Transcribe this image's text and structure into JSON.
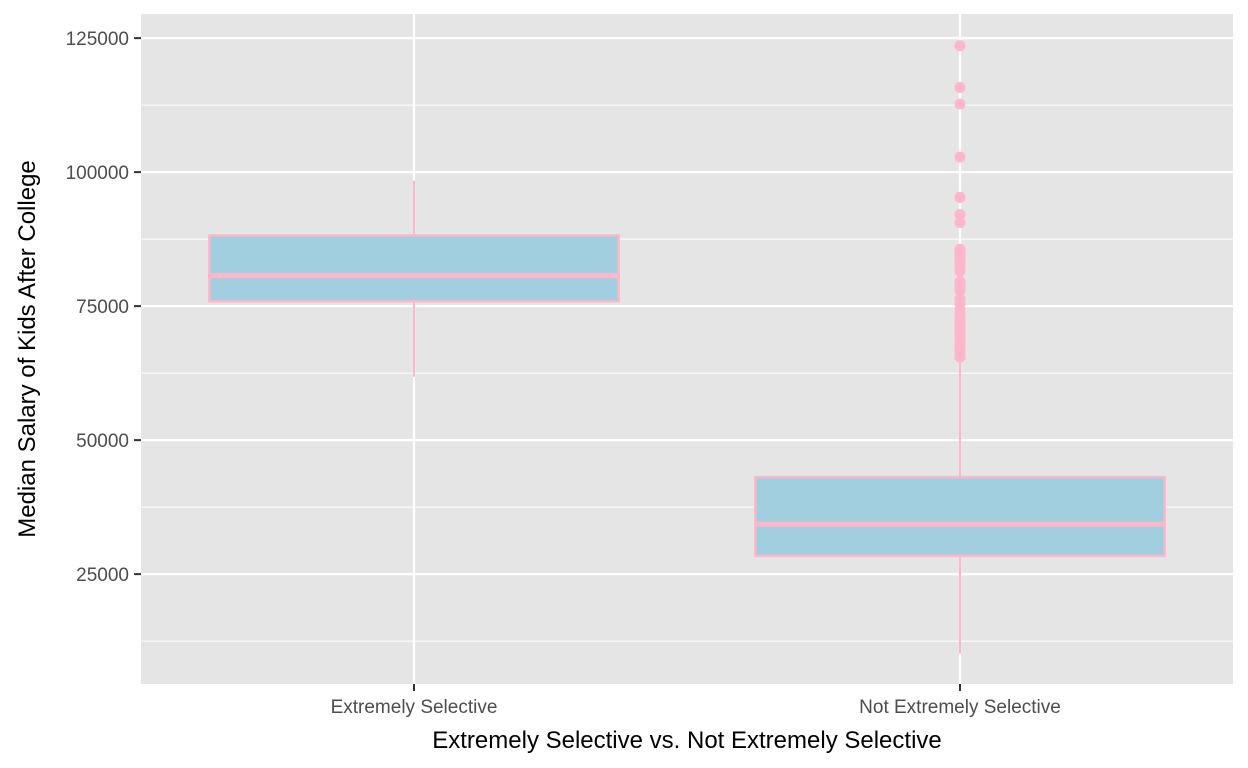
{
  "chart_data": {
    "type": "boxplot",
    "title": "",
    "xlabel": "Extremely Selective vs. Not Extremely Selective",
    "ylabel": "Median Salary of Kids After College",
    "ylim": [
      4500,
      129500
    ],
    "y_ticks": [
      25000,
      50000,
      75000,
      100000,
      125000
    ],
    "y_tick_labels": [
      "25000",
      "50000",
      "75000",
      "100000",
      "125000"
    ],
    "y_minor_ticks": [
      12500,
      37500,
      62500,
      87500,
      112500
    ],
    "grid": true,
    "colors": {
      "panel_background": "#e5e5e5",
      "grid": "#ffffff",
      "box_fill": "#a2cfe0",
      "box_outline": "#ffb6c8",
      "outlier": "#ffb6c8"
    },
    "categories": [
      "Extremely Selective",
      "Not Extremely Selective"
    ],
    "boxes": [
      {
        "category": "Extremely Selective",
        "whisker_low": 61800,
        "q1": 75900,
        "median": 80700,
        "q3": 88200,
        "whisker_high": 98400,
        "outliers": []
      },
      {
        "category": "Not Extremely Selective",
        "whisker_low": 10200,
        "q1": 28400,
        "median": 34300,
        "q3": 43100,
        "whisker_high": 65000,
        "outliers": [
          123600,
          115800,
          112700,
          102800,
          95300,
          92100,
          90600,
          85600,
          84900,
          84200,
          83300,
          82500,
          81500,
          79600,
          78600,
          77900,
          76300,
          75400,
          74300,
          73300,
          72400,
          71600,
          70800,
          69900,
          69000,
          68300,
          67600,
          66900,
          66200,
          65500
        ]
      }
    ]
  }
}
